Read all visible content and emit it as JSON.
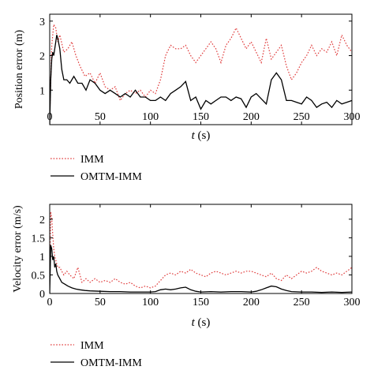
{
  "chart_data": [
    {
      "type": "line",
      "title": "",
      "ylabel": "Position error (m)",
      "xlabel": "t (s)",
      "xlabel_var": "t",
      "xlabel_unit": "(s)",
      "xlim": [
        0,
        300
      ],
      "ylim": [
        0,
        3.2
      ],
      "xticks": [
        0,
        50,
        100,
        150,
        200,
        250,
        300
      ],
      "yticks": [
        1,
        2,
        3
      ],
      "grid": false,
      "legend_position": "below-left",
      "series": [
        {
          "name": "IMM",
          "color": "#e03c3c",
          "style": "dotted",
          "x": [
            0,
            2,
            4,
            6,
            8,
            10,
            14,
            18,
            22,
            26,
            30,
            35,
            40,
            45,
            50,
            55,
            60,
            65,
            70,
            75,
            80,
            85,
            90,
            95,
            100,
            105,
            110,
            115,
            120,
            125,
            130,
            135,
            140,
            145,
            150,
            155,
            160,
            165,
            170,
            175,
            180,
            185,
            190,
            195,
            200,
            205,
            210,
            215,
            220,
            225,
            230,
            235,
            240,
            245,
            250,
            255,
            260,
            265,
            270,
            275,
            280,
            285,
            290,
            295,
            300
          ],
          "values": [
            0.2,
            2.3,
            2.9,
            2.8,
            2.4,
            2.6,
            2.1,
            2.2,
            2.4,
            2.0,
            1.7,
            1.4,
            1.5,
            1.2,
            1.5,
            1.1,
            1.0,
            1.1,
            0.7,
            0.9,
            1.0,
            0.9,
            1.0,
            0.8,
            1.0,
            0.9,
            1.3,
            2.0,
            2.3,
            2.2,
            2.2,
            2.3,
            2.0,
            1.8,
            2.0,
            2.2,
            2.4,
            2.2,
            1.8,
            2.3,
            2.5,
            2.8,
            2.5,
            2.2,
            2.4,
            2.1,
            1.8,
            2.5,
            1.9,
            2.1,
            2.3,
            1.7,
            1.3,
            1.5,
            1.8,
            2.0,
            2.3,
            2.0,
            2.2,
            2.1,
            2.4,
            2.0,
            2.6,
            2.3,
            2.1
          ]
        },
        {
          "name": "OMTM-IMM",
          "color": "#000000",
          "style": "solid",
          "x": [
            0,
            1,
            2,
            3,
            4,
            5,
            6,
            7,
            8,
            10,
            12,
            14,
            17,
            20,
            24,
            28,
            32,
            36,
            40,
            45,
            50,
            55,
            60,
            65,
            70,
            75,
            80,
            85,
            90,
            95,
            100,
            105,
            110,
            115,
            120,
            125,
            130,
            135,
            140,
            145,
            150,
            155,
            160,
            165,
            170,
            175,
            180,
            185,
            190,
            195,
            200,
            205,
            210,
            215,
            220,
            225,
            230,
            235,
            240,
            245,
            250,
            255,
            260,
            265,
            270,
            275,
            280,
            285,
            290,
            295,
            300
          ],
          "values": [
            0.0,
            1.3,
            1.9,
            2.1,
            2.0,
            2.2,
            2.4,
            2.6,
            2.5,
            2.2,
            1.6,
            1.3,
            1.3,
            1.2,
            1.4,
            1.2,
            1.2,
            1.0,
            1.3,
            1.2,
            1.0,
            0.9,
            1.0,
            0.9,
            0.8,
            0.9,
            0.8,
            1.0,
            0.8,
            0.8,
            0.7,
            0.7,
            0.8,
            0.7,
            0.9,
            1.0,
            1.1,
            1.25,
            0.7,
            0.8,
            0.45,
            0.7,
            0.6,
            0.7,
            0.8,
            0.8,
            0.7,
            0.8,
            0.75,
            0.5,
            0.8,
            0.9,
            0.75,
            0.6,
            1.3,
            1.5,
            1.3,
            0.7,
            0.7,
            0.65,
            0.6,
            0.8,
            0.7,
            0.5,
            0.6,
            0.65,
            0.5,
            0.7,
            0.6,
            0.65,
            0.7
          ]
        }
      ]
    },
    {
      "type": "line",
      "title": "",
      "ylabel": "Velocity error (m/s)",
      "xlabel": "t (s)",
      "xlabel_var": "t",
      "xlabel_unit": "(s)",
      "xlim": [
        0,
        300
      ],
      "ylim": [
        0,
        2.4
      ],
      "xticks": [
        0,
        50,
        100,
        150,
        200,
        250,
        300
      ],
      "yticks": [
        0,
        0.5,
        1,
        1.5,
        2
      ],
      "grid": false,
      "legend_position": "below-left",
      "series": [
        {
          "name": "IMM",
          "color": "#e03c3c",
          "style": "dotted",
          "x": [
            0,
            1,
            2,
            3,
            4,
            5,
            6,
            7,
            8,
            10,
            12,
            14,
            17,
            20,
            24,
            28,
            32,
            36,
            40,
            45,
            50,
            55,
            60,
            65,
            70,
            75,
            80,
            85,
            90,
            95,
            100,
            105,
            110,
            115,
            120,
            125,
            130,
            135,
            140,
            145,
            150,
            155,
            160,
            165,
            170,
            175,
            180,
            185,
            190,
            195,
            200,
            205,
            210,
            215,
            220,
            225,
            230,
            235,
            240,
            245,
            250,
            255,
            260,
            265,
            270,
            275,
            280,
            285,
            290,
            295,
            300
          ],
          "values": [
            0.3,
            2.2,
            2.0,
            1.6,
            1.2,
            1.0,
            0.9,
            0.8,
            0.7,
            0.7,
            0.6,
            0.5,
            0.6,
            0.5,
            0.4,
            0.7,
            0.3,
            0.4,
            0.3,
            0.4,
            0.3,
            0.35,
            0.3,
            0.4,
            0.3,
            0.25,
            0.3,
            0.2,
            0.15,
            0.2,
            0.15,
            0.2,
            0.35,
            0.5,
            0.55,
            0.5,
            0.6,
            0.55,
            0.65,
            0.55,
            0.5,
            0.45,
            0.55,
            0.6,
            0.55,
            0.5,
            0.55,
            0.6,
            0.55,
            0.6,
            0.6,
            0.55,
            0.5,
            0.45,
            0.55,
            0.4,
            0.35,
            0.5,
            0.4,
            0.5,
            0.6,
            0.55,
            0.6,
            0.7,
            0.6,
            0.55,
            0.5,
            0.55,
            0.5,
            0.6,
            0.7
          ]
        },
        {
          "name": "OMTM-IMM",
          "color": "#000000",
          "style": "solid",
          "x": [
            0,
            1,
            2,
            3,
            4,
            5,
            6,
            7,
            8,
            10,
            12,
            15,
            18,
            22,
            26,
            30,
            35,
            40,
            50,
            60,
            70,
            80,
            90,
            100,
            105,
            110,
            115,
            120,
            125,
            130,
            135,
            140,
            145,
            150,
            160,
            170,
            180,
            190,
            200,
            205,
            210,
            215,
            220,
            225,
            230,
            235,
            240,
            250,
            260,
            270,
            280,
            290,
            300
          ],
          "values": [
            0.0,
            1.3,
            1.2,
            0.9,
            1.0,
            0.7,
            0.8,
            0.6,
            0.5,
            0.4,
            0.3,
            0.25,
            0.2,
            0.15,
            0.12,
            0.1,
            0.08,
            0.07,
            0.06,
            0.05,
            0.05,
            0.04,
            0.04,
            0.04,
            0.05,
            0.1,
            0.12,
            0.1,
            0.12,
            0.15,
            0.17,
            0.1,
            0.06,
            0.04,
            0.05,
            0.04,
            0.05,
            0.05,
            0.04,
            0.06,
            0.1,
            0.15,
            0.2,
            0.18,
            0.12,
            0.08,
            0.05,
            0.04,
            0.04,
            0.03,
            0.04,
            0.03,
            0.04
          ]
        }
      ]
    }
  ]
}
